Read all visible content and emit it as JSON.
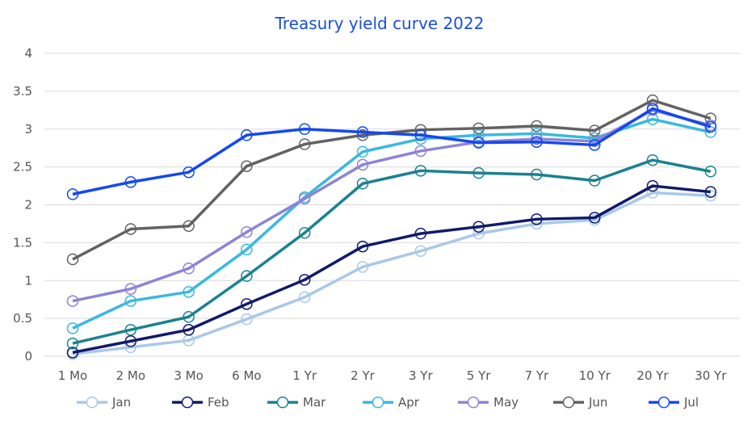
{
  "chart_data": {
    "type": "line",
    "title": "Treasury yield curve 2022",
    "xlabel": "",
    "ylabel": "",
    "categories": [
      "1 Mo",
      "2 Mo",
      "3 Mo",
      "6 Mo",
      "1 Yr",
      "2 Yr",
      "3 Yr",
      "5 Yr",
      "7 Yr",
      "10 Yr",
      "20 Yr",
      "30 Yr"
    ],
    "ylim": [
      0,
      4
    ],
    "yticks": [
      "0",
      "0.5",
      "1",
      "1.5",
      "2",
      "2.5",
      "3",
      "3.5",
      "4"
    ],
    "grid": true,
    "legend_position": "bottom",
    "series": [
      {
        "name": "Jan",
        "color": "#a9c8e8",
        "values": [
          0.03,
          0.12,
          0.21,
          0.49,
          0.78,
          1.18,
          1.39,
          1.62,
          1.75,
          1.8,
          2.16,
          2.12
        ]
      },
      {
        "name": "Feb",
        "color": "#10196b",
        "values": [
          0.05,
          0.2,
          0.35,
          0.69,
          1.01,
          1.45,
          1.62,
          1.71,
          1.81,
          1.83,
          2.25,
          2.17
        ]
      },
      {
        "name": "Mar",
        "color": "#1a8290",
        "values": [
          0.17,
          0.35,
          0.52,
          1.06,
          1.63,
          2.28,
          2.45,
          2.42,
          2.4,
          2.32,
          2.59,
          2.44
        ]
      },
      {
        "name": "Apr",
        "color": "#3ab8e0",
        "values": [
          0.37,
          0.73,
          0.85,
          1.41,
          2.1,
          2.7,
          2.87,
          2.92,
          2.94,
          2.88,
          3.13,
          2.96
        ]
      },
      {
        "name": "May",
        "color": "#8d84d6",
        "values": [
          0.73,
          0.89,
          1.16,
          1.64,
          2.08,
          2.53,
          2.71,
          2.83,
          2.87,
          2.84,
          3.25,
          3.05
        ]
      },
      {
        "name": "Jun",
        "color": "#626262",
        "values": [
          1.28,
          1.68,
          1.72,
          2.51,
          2.8,
          2.92,
          2.99,
          3.01,
          3.04,
          2.98,
          3.38,
          3.14
        ]
      },
      {
        "name": "Jul",
        "color": "#1448f0",
        "values": [
          2.14,
          2.3,
          2.43,
          2.92,
          3.0,
          2.96,
          2.92,
          2.82,
          2.83,
          2.79,
          3.27,
          3.03
        ]
      }
    ]
  }
}
